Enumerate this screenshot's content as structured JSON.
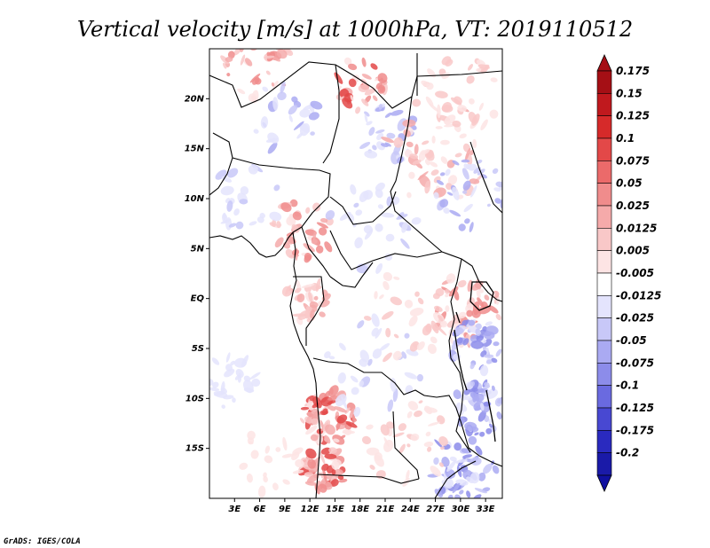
{
  "title": "Vertical velocity [m/s] at 1000hPa, VT: 2019110512",
  "credit": "GrADS: IGES/COLA",
  "map": {
    "lon_range": [
      0,
      35
    ],
    "lat_range": [
      -20,
      25
    ],
    "lat_ticks": [
      {
        "value": 20,
        "label": "20N"
      },
      {
        "value": 15,
        "label": "15N"
      },
      {
        "value": 10,
        "label": "10N"
      },
      {
        "value": 5,
        "label": "5N"
      },
      {
        "value": 0,
        "label": "EQ"
      },
      {
        "value": -5,
        "label": "5S"
      },
      {
        "value": -10,
        "label": "10S"
      },
      {
        "value": -15,
        "label": "15S"
      }
    ],
    "lon_ticks": [
      {
        "value": 3,
        "label": "3E"
      },
      {
        "value": 6,
        "label": "6E"
      },
      {
        "value": 9,
        "label": "9E"
      },
      {
        "value": 12,
        "label": "12E"
      },
      {
        "value": 15,
        "label": "15E"
      },
      {
        "value": 18,
        "label": "18E"
      },
      {
        "value": 21,
        "label": "21E"
      },
      {
        "value": 24,
        "label": "24E"
      },
      {
        "value": 27,
        "label": "27E"
      },
      {
        "value": 30,
        "label": "30E"
      },
      {
        "value": 33,
        "label": "33E"
      }
    ]
  },
  "colorbar": {
    "levels": [
      {
        "label": "0.175",
        "color": "#a50f15"
      },
      {
        "label": "0.15",
        "color": "#c0191e"
      },
      {
        "label": "0.125",
        "color": "#d62a2a"
      },
      {
        "label": "0.1",
        "color": "#e34848"
      },
      {
        "label": "0.075",
        "color": "#eb6a6a"
      },
      {
        "label": "0.05",
        "color": "#f08c8c"
      },
      {
        "label": "0.025",
        "color": "#f5aaaa"
      },
      {
        "label": "0.0125",
        "color": "#f9c8c8"
      },
      {
        "label": "0.005",
        "color": "#fde4e4"
      },
      {
        "label": "-0.005",
        "color": "#ffffff"
      },
      {
        "label": "-0.0125",
        "color": "#e4e4fd"
      },
      {
        "label": "-0.025",
        "color": "#c8c8f8"
      },
      {
        "label": "-0.05",
        "color": "#aaaaf2"
      },
      {
        "label": "-0.075",
        "color": "#8c8cea"
      },
      {
        "label": "-0.1",
        "color": "#6a6ae0"
      },
      {
        "label": "-0.125",
        "color": "#4848d2"
      },
      {
        "label": "-0.175",
        "color": "#2a2abf"
      },
      {
        "label": "-0.2",
        "color": "#1a1aa8"
      }
    ],
    "top_cap_color": "#a50f15",
    "bottom_cap_color": "#1010a0"
  }
}
